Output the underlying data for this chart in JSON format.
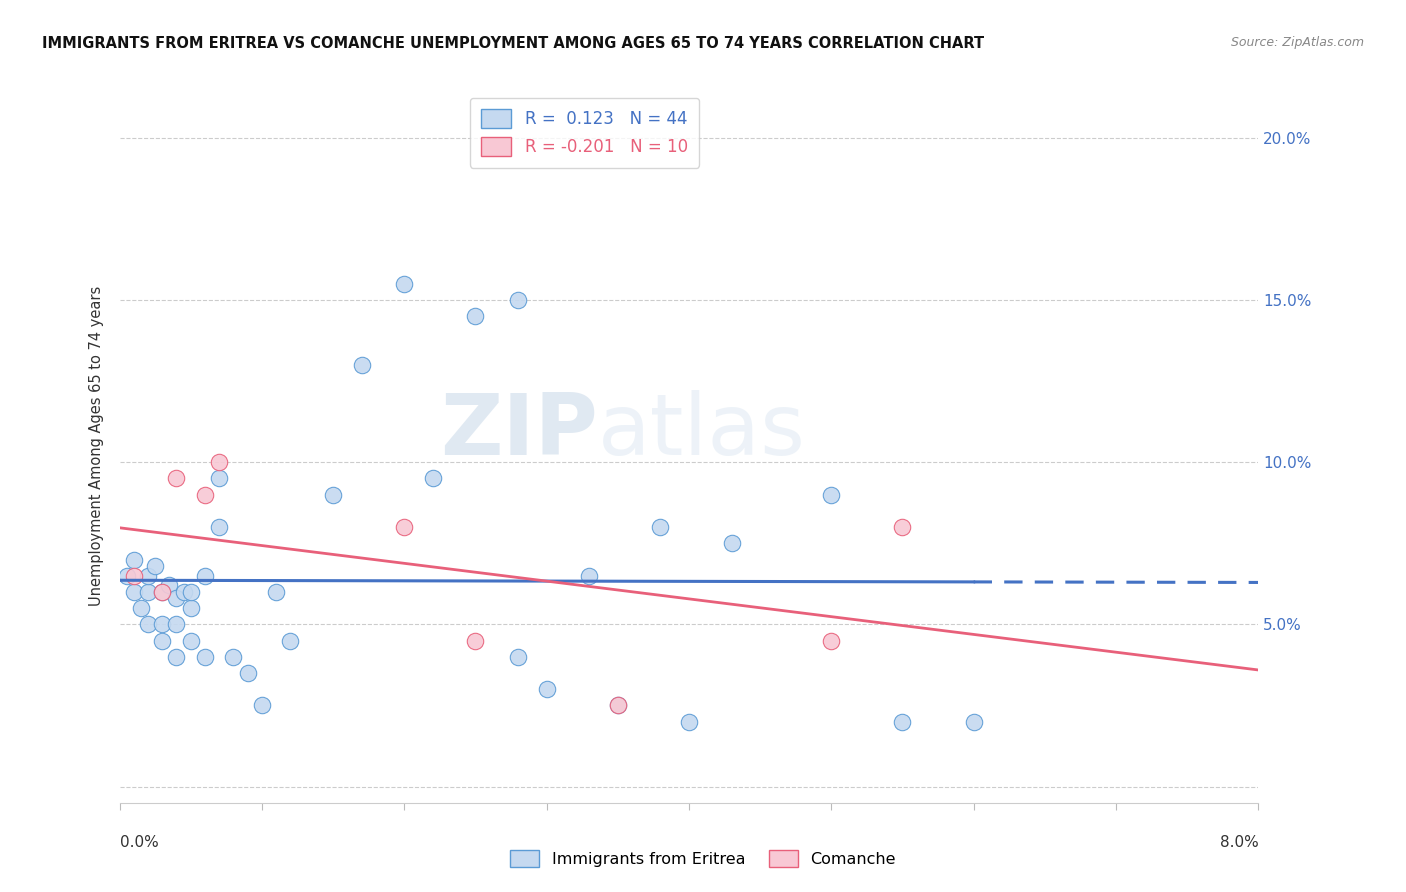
{
  "title": "IMMIGRANTS FROM ERITREA VS COMANCHE UNEMPLOYMENT AMONG AGES 65 TO 74 YEARS CORRELATION CHART",
  "source": "Source: ZipAtlas.com",
  "ylabel": "Unemployment Among Ages 65 to 74 years",
  "ytick_values": [
    0.0,
    0.05,
    0.1,
    0.15,
    0.2
  ],
  "ytick_labels": [
    "",
    "5.0%",
    "10.0%",
    "15.0%",
    "20.0%"
  ],
  "xlim": [
    0.0,
    0.08
  ],
  "ylim": [
    -0.005,
    0.215
  ],
  "legend1_r": " 0.123",
  "legend1_n": "44",
  "legend2_r": "-0.201",
  "legend2_n": "10",
  "color_eritrea_face": "#c5d9f0",
  "color_eritrea_edge": "#5b9bd5",
  "color_comanche_face": "#f8c8d4",
  "color_comanche_edge": "#e8607a",
  "color_line_eritrea": "#4472c4",
  "color_line_comanche": "#e8607a",
  "watermark_zip": "ZIP",
  "watermark_atlas": "atlas",
  "eritrea_x": [
    0.0005,
    0.001,
    0.001,
    0.0015,
    0.002,
    0.002,
    0.002,
    0.0025,
    0.003,
    0.003,
    0.003,
    0.0035,
    0.004,
    0.004,
    0.004,
    0.0045,
    0.005,
    0.005,
    0.005,
    0.006,
    0.006,
    0.007,
    0.007,
    0.008,
    0.009,
    0.01,
    0.011,
    0.012,
    0.015,
    0.017,
    0.02,
    0.022,
    0.025,
    0.028,
    0.033,
    0.038,
    0.04,
    0.043,
    0.05,
    0.055,
    0.028,
    0.03,
    0.035,
    0.06
  ],
  "eritrea_y": [
    0.065,
    0.07,
    0.06,
    0.055,
    0.06,
    0.065,
    0.05,
    0.068,
    0.06,
    0.05,
    0.045,
    0.062,
    0.058,
    0.05,
    0.04,
    0.06,
    0.055,
    0.045,
    0.06,
    0.065,
    0.04,
    0.095,
    0.08,
    0.04,
    0.035,
    0.025,
    0.06,
    0.045,
    0.09,
    0.13,
    0.155,
    0.095,
    0.145,
    0.15,
    0.065,
    0.08,
    0.02,
    0.075,
    0.09,
    0.02,
    0.04,
    0.03,
    0.025,
    0.02
  ],
  "comanche_x": [
    0.001,
    0.003,
    0.004,
    0.006,
    0.007,
    0.02,
    0.025,
    0.035,
    0.05,
    0.055
  ],
  "comanche_y": [
    0.065,
    0.06,
    0.095,
    0.09,
    0.1,
    0.08,
    0.045,
    0.025,
    0.045,
    0.08
  ]
}
